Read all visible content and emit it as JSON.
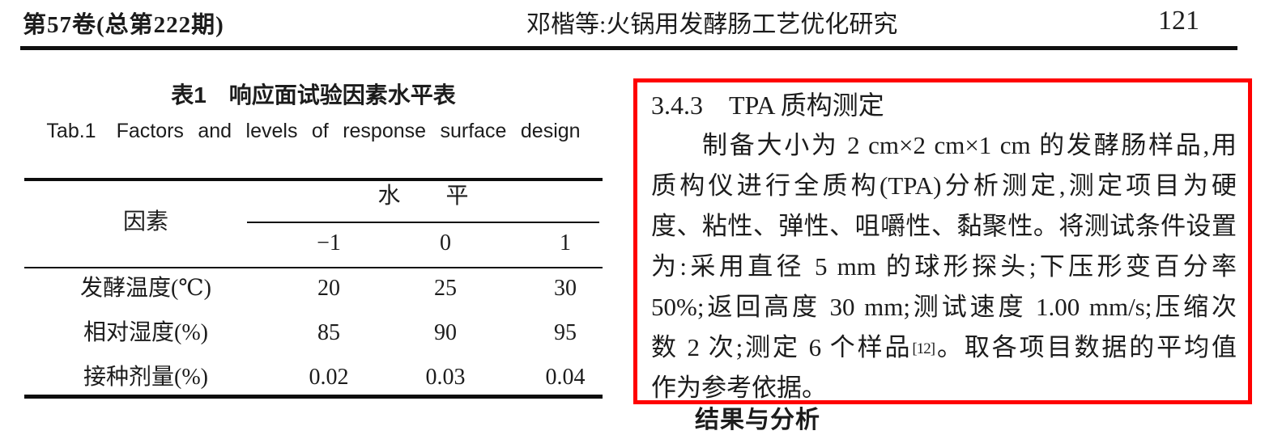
{
  "page_header": {
    "journal_info": "第57卷(总第222期)",
    "running_title": "邓楷等:火锅用发酵肠工艺优化研究",
    "page_number": "121"
  },
  "table_section": {
    "title_zh": "表1　响应面试验因素水平表",
    "title_en": "Tab.1　Factors and levels of response surface design",
    "header": {
      "factor_label": "因素",
      "level_label": "水　　平",
      "level_columns": [
        "−1",
        "0",
        "1"
      ]
    },
    "rows": [
      {
        "label": "发酵温度(℃)",
        "values": [
          "20",
          "25",
          "30"
        ]
      },
      {
        "label": "相对湿度(%)",
        "values": [
          "85",
          "90",
          "95"
        ]
      },
      {
        "label": "接种剂量(%)",
        "values": [
          "0.02",
          "0.03",
          "0.04"
        ]
      }
    ]
  },
  "chart_data": {
    "type": "table",
    "title": "表1 响应面试验因素水平表 / Tab.1 Factors and levels of response surface design",
    "columns": [
      "因素",
      "−1",
      "0",
      "1"
    ],
    "rows": [
      [
        "发酵温度(℃)",
        "20",
        "25",
        "30"
      ],
      [
        "相对湿度(%)",
        "85",
        "90",
        "95"
      ],
      [
        "接种剂量(%)",
        "0.02",
        "0.03",
        "0.04"
      ]
    ]
  },
  "tpa_section": {
    "highlight_color": "#ff0101",
    "heading": "3.4.3　TPA 质构测定",
    "paragraph_lines": [
      "制备大小为 2 cm×2 cm×1 cm 的发酵肠样品,用",
      "质构仪进行全质构(TPA)分析测定,测定项目为硬",
      "度、粘性、弹性、咀嚼性、黏聚性。将测试条件设置",
      "为:采用直径 5 mm 的球形探头;下压形变百分率",
      "50%;返回高度 30 mm;测试速度 1.00 mm/s;压缩次",
      {
        "pre": "数 2 次;测定 6 个样品",
        "ref": "[12]",
        "post": "。取各项目数据的平均值"
      },
      "作为参考依据。"
    ]
  },
  "next_section": {
    "partial_heading": "结果与分析"
  }
}
